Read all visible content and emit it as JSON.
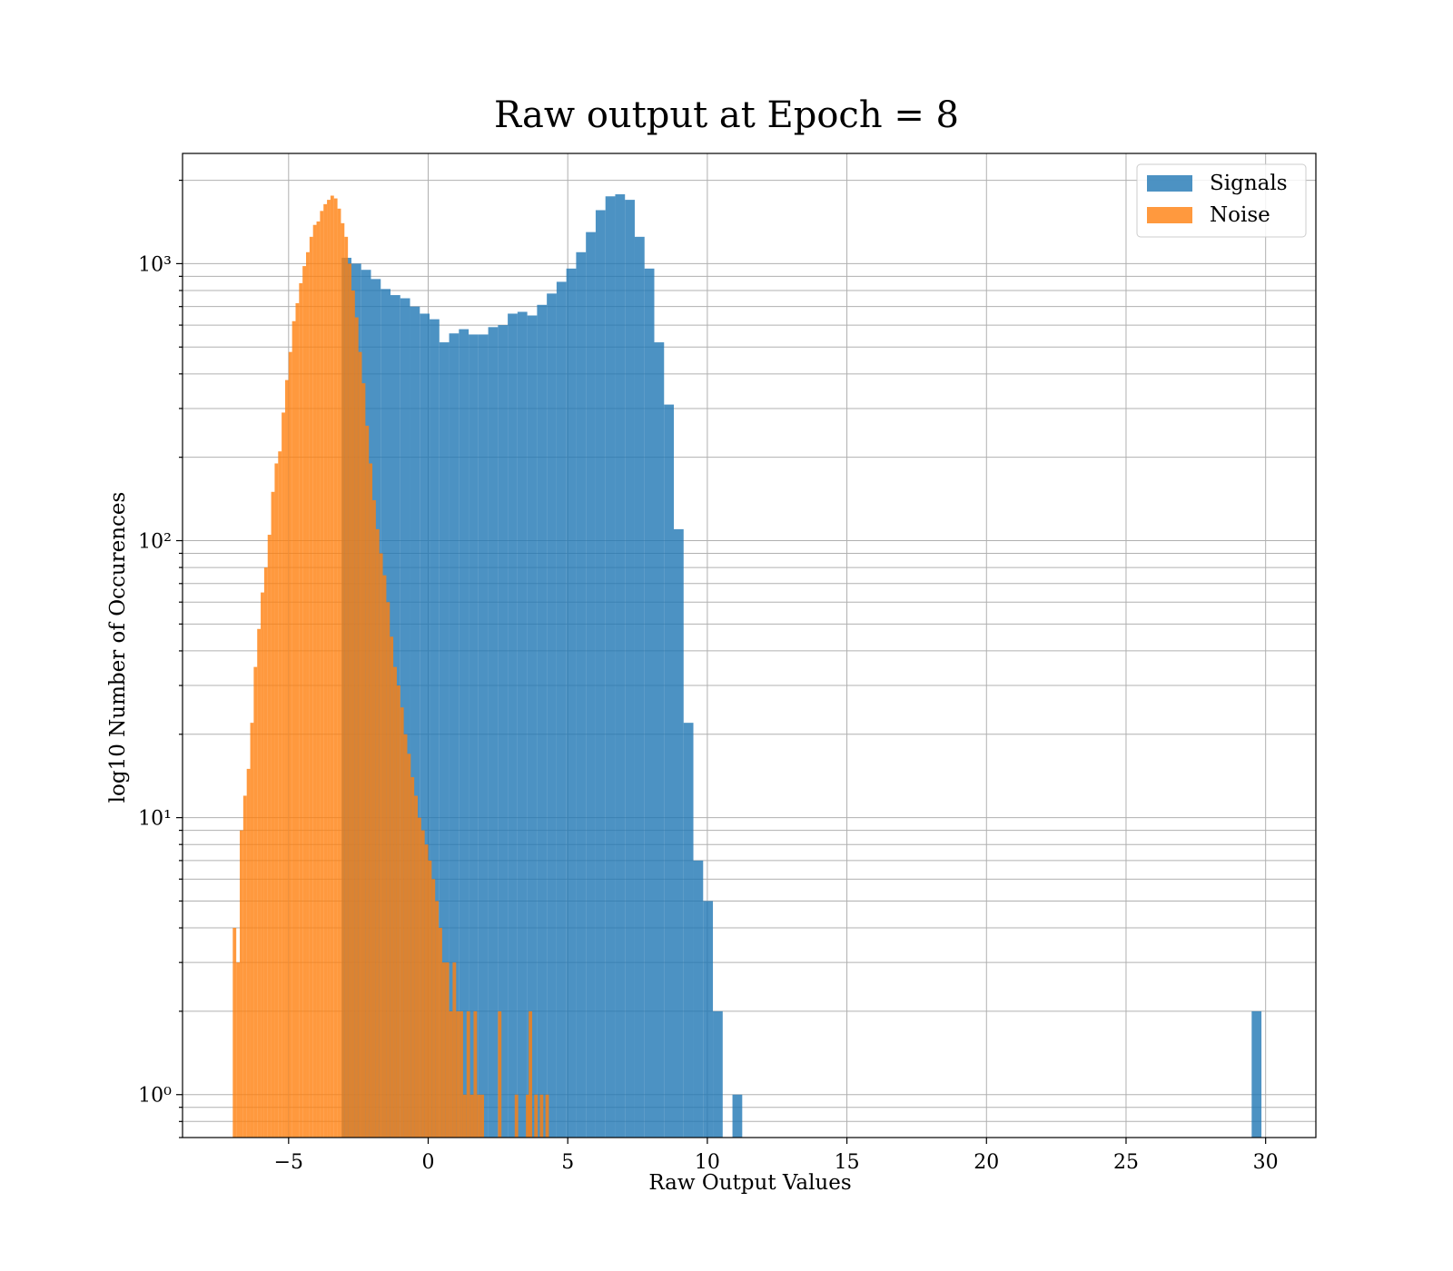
{
  "chart_data": {
    "type": "bar",
    "title": "Raw output at Epoch = 8",
    "xlabel": "Raw Output Values",
    "ylabel": "log10 Number of Occurences",
    "xlim": [
      -8.8,
      31.8
    ],
    "ylim": [
      0.7,
      2500
    ],
    "yscale": "log",
    "xticks": [
      -5,
      0,
      5,
      10,
      15,
      20,
      25,
      30
    ],
    "xtick_labels": [
      "−5",
      "0",
      "5",
      "10",
      "15",
      "20",
      "25",
      "30"
    ],
    "yticks": [
      1,
      10,
      100,
      1000
    ],
    "ytick_labels": [
      "10⁰",
      "10¹",
      "10²",
      "10³"
    ],
    "grid": true,
    "legend_position": "top-right",
    "series": [
      {
        "name": "Signals",
        "color": "#1f77b4",
        "alpha": 0.8,
        "bins": [
          [
            -3.1,
            -2.75,
            1050
          ],
          [
            -2.75,
            -2.4,
            1000
          ],
          [
            -2.4,
            -2.05,
            950
          ],
          [
            -2.05,
            -1.7,
            880
          ],
          [
            -1.7,
            -1.35,
            810
          ],
          [
            -1.35,
            -1.0,
            770
          ],
          [
            -1.0,
            -0.65,
            750
          ],
          [
            -0.65,
            -0.3,
            700
          ],
          [
            -0.3,
            0.05,
            660
          ],
          [
            0.05,
            0.4,
            630
          ],
          [
            0.4,
            0.75,
            520
          ],
          [
            0.75,
            1.1,
            560
          ],
          [
            1.1,
            1.45,
            580
          ],
          [
            1.45,
            1.8,
            555
          ],
          [
            1.8,
            2.15,
            555
          ],
          [
            2.15,
            2.5,
            590
          ],
          [
            2.5,
            2.85,
            600
          ],
          [
            2.85,
            3.2,
            660
          ],
          [
            3.2,
            3.55,
            670
          ],
          [
            3.55,
            3.9,
            650
          ],
          [
            3.9,
            4.25,
            710
          ],
          [
            4.25,
            4.6,
            780
          ],
          [
            4.6,
            4.95,
            860
          ],
          [
            4.95,
            5.3,
            960
          ],
          [
            5.3,
            5.65,
            1100
          ],
          [
            5.65,
            6.0,
            1300
          ],
          [
            6.0,
            6.35,
            1560
          ],
          [
            6.35,
            6.7,
            1750
          ],
          [
            6.7,
            7.05,
            1780
          ],
          [
            7.05,
            7.4,
            1700
          ],
          [
            7.4,
            7.75,
            1250
          ],
          [
            7.75,
            8.1,
            960
          ],
          [
            8.1,
            8.45,
            520
          ],
          [
            8.45,
            8.8,
            310
          ],
          [
            8.8,
            9.15,
            110
          ],
          [
            9.15,
            9.5,
            22
          ],
          [
            9.5,
            9.85,
            7
          ],
          [
            9.85,
            10.2,
            5
          ],
          [
            10.2,
            10.55,
            2
          ],
          [
            10.55,
            10.9,
            0
          ],
          [
            10.9,
            11.25,
            1
          ],
          [
            29.5,
            29.85,
            2
          ]
        ]
      },
      {
        "name": "Noise",
        "color": "#ff7f0e",
        "alpha": 0.8,
        "bins": [
          [
            -7.0,
            -6.875,
            4
          ],
          [
            -6.875,
            -6.75,
            3
          ],
          [
            -6.75,
            -6.625,
            9
          ],
          [
            -6.625,
            -6.5,
            12
          ],
          [
            -6.5,
            -6.375,
            15
          ],
          [
            -6.375,
            -6.25,
            22
          ],
          [
            -6.25,
            -6.125,
            35
          ],
          [
            -6.125,
            -6.0,
            48
          ],
          [
            -6.0,
            -5.875,
            65
          ],
          [
            -5.875,
            -5.75,
            80
          ],
          [
            -5.75,
            -5.625,
            105
          ],
          [
            -5.625,
            -5.5,
            150
          ],
          [
            -5.5,
            -5.375,
            190
          ],
          [
            -5.375,
            -5.25,
            210
          ],
          [
            -5.25,
            -5.125,
            290
          ],
          [
            -5.125,
            -5.0,
            380
          ],
          [
            -5.0,
            -4.875,
            480
          ],
          [
            -4.875,
            -4.75,
            620
          ],
          [
            -4.75,
            -4.625,
            720
          ],
          [
            -4.625,
            -4.5,
            850
          ],
          [
            -4.5,
            -4.375,
            980
          ],
          [
            -4.375,
            -4.25,
            1100
          ],
          [
            -4.25,
            -4.125,
            1250
          ],
          [
            -4.125,
            -4.0,
            1380
          ],
          [
            -4.0,
            -3.875,
            1420
          ],
          [
            -3.875,
            -3.75,
            1550
          ],
          [
            -3.75,
            -3.625,
            1640
          ],
          [
            -3.625,
            -3.5,
            1700
          ],
          [
            -3.5,
            -3.375,
            1760
          ],
          [
            -3.375,
            -3.25,
            1720
          ],
          [
            -3.25,
            -3.125,
            1580
          ],
          [
            -3.125,
            -3.0,
            1400
          ],
          [
            -3.0,
            -2.875,
            1250
          ],
          [
            -2.875,
            -2.75,
            1000
          ],
          [
            -2.75,
            -2.625,
            800
          ],
          [
            -2.625,
            -2.5,
            640
          ],
          [
            -2.5,
            -2.375,
            480
          ],
          [
            -2.375,
            -2.25,
            370
          ],
          [
            -2.25,
            -2.125,
            260
          ],
          [
            -2.125,
            -2.0,
            190
          ],
          [
            -2.0,
            -1.875,
            140
          ],
          [
            -1.875,
            -1.75,
            110
          ],
          [
            -1.75,
            -1.625,
            90
          ],
          [
            -1.625,
            -1.5,
            75
          ],
          [
            -1.5,
            -1.375,
            60
          ],
          [
            -1.375,
            -1.25,
            45
          ],
          [
            -1.25,
            -1.125,
            35
          ],
          [
            -1.125,
            -1.0,
            30
          ],
          [
            -1.0,
            -0.875,
            25
          ],
          [
            -0.875,
            -0.75,
            20
          ],
          [
            -0.75,
            -0.625,
            17
          ],
          [
            -0.625,
            -0.5,
            14
          ],
          [
            -0.5,
            -0.375,
            12
          ],
          [
            -0.375,
            -0.25,
            10
          ],
          [
            -0.25,
            -0.125,
            9
          ],
          [
            -0.125,
            0.0,
            8
          ],
          [
            0.0,
            0.125,
            7
          ],
          [
            0.125,
            0.25,
            6
          ],
          [
            0.25,
            0.375,
            5
          ],
          [
            0.375,
            0.5,
            4
          ],
          [
            0.5,
            0.625,
            3
          ],
          [
            0.625,
            0.75,
            3
          ],
          [
            0.75,
            0.875,
            2
          ],
          [
            0.875,
            1.0,
            3
          ],
          [
            1.0,
            1.125,
            2
          ],
          [
            1.125,
            1.25,
            2
          ],
          [
            1.25,
            1.375,
            1
          ],
          [
            1.375,
            1.5,
            2
          ],
          [
            1.5,
            1.625,
            1
          ],
          [
            1.625,
            1.75,
            2
          ],
          [
            1.75,
            1.875,
            1
          ],
          [
            1.875,
            2.0,
            1
          ],
          [
            2.5,
            2.625,
            2
          ],
          [
            3.1,
            3.225,
            1
          ],
          [
            3.5,
            3.625,
            1
          ],
          [
            3.6,
            3.725,
            2
          ],
          [
            3.8,
            3.925,
            1
          ],
          [
            4.0,
            4.125,
            1
          ],
          [
            4.2,
            4.325,
            1
          ]
        ]
      }
    ]
  }
}
